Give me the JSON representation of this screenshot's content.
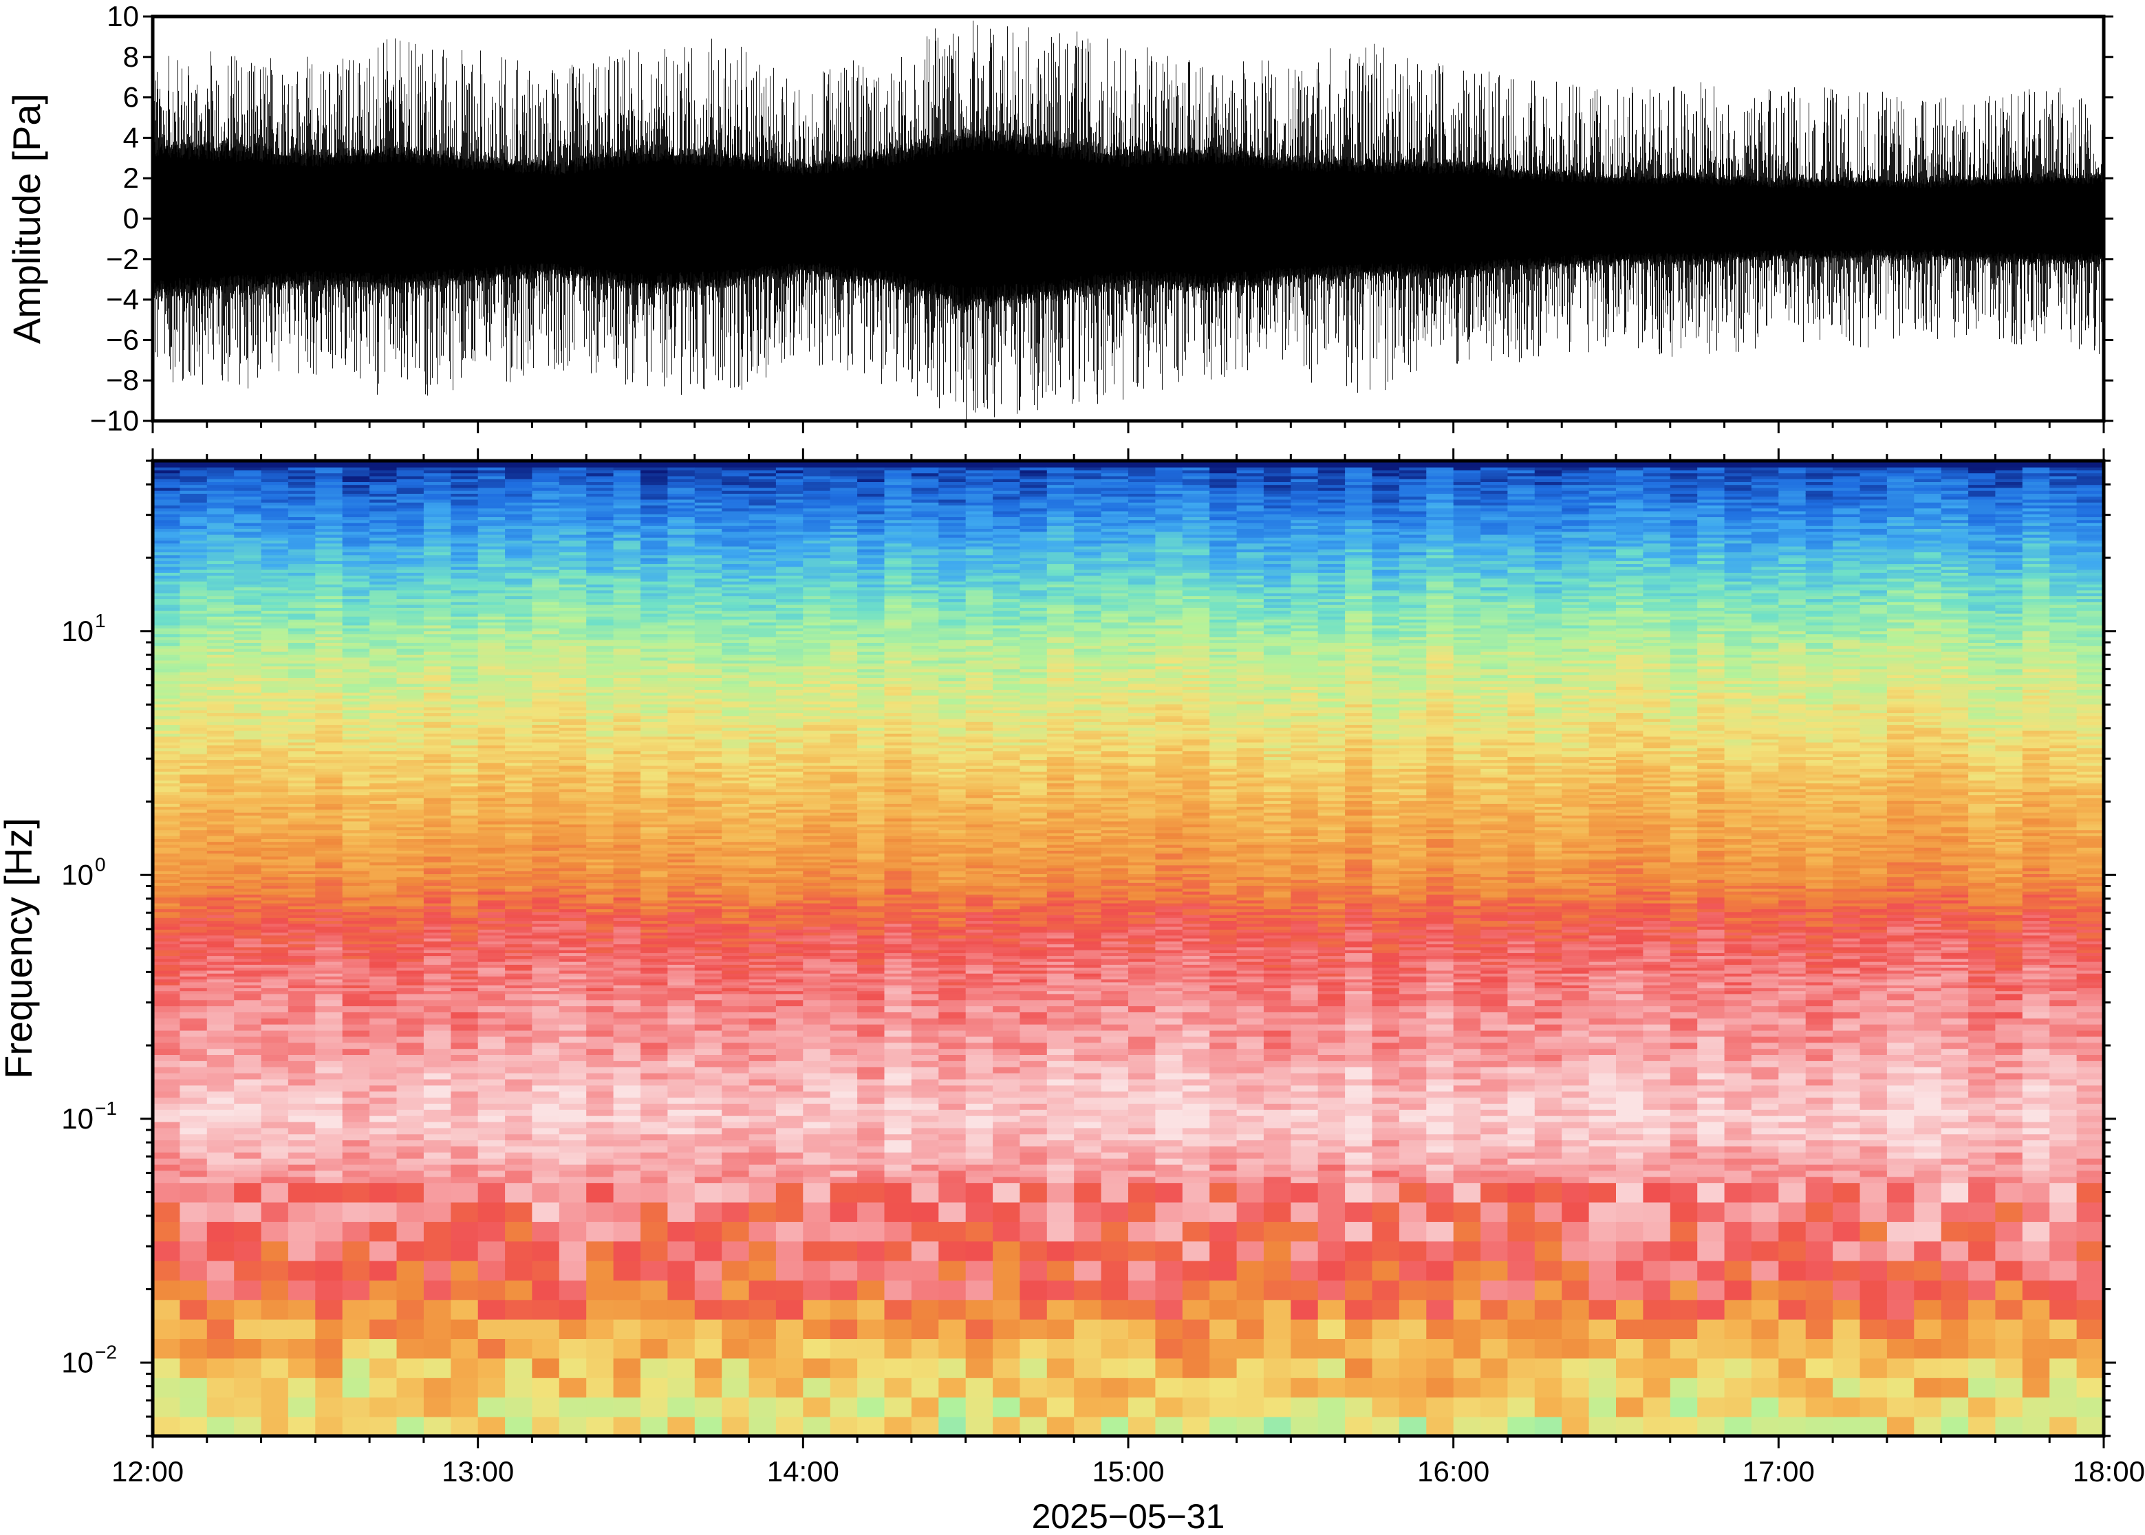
{
  "chart_data": [
    {
      "type": "line",
      "panel": "waveform",
      "ylabel": "Amplitude [Pa]",
      "ylim": [
        -10,
        10
      ],
      "yticks": [
        10,
        8,
        6,
        4,
        2,
        0,
        -2,
        -4,
        -6,
        -8,
        -10
      ],
      "ytick_labels": [
        "10",
        "8",
        "6",
        "4",
        "2",
        "0",
        "−2",
        "−4",
        "−6",
        "−8",
        "−10"
      ],
      "xlim": [
        "12:00",
        "18:00"
      ],
      "line_color": "#000000",
      "envelope": {
        "hours": [
          12.0,
          12.25,
          12.5,
          12.75,
          13.0,
          13.25,
          13.5,
          13.75,
          14.0,
          14.25,
          14.5,
          14.75,
          15.0,
          15.25,
          15.5,
          15.75,
          16.0,
          16.25,
          16.5,
          16.75,
          17.0,
          17.25,
          17.5,
          17.75,
          18.0
        ],
        "core_amplitude": [
          3.5,
          3.3,
          3.0,
          3.2,
          2.8,
          2.5,
          3.2,
          3.0,
          2.5,
          3.0,
          4.0,
          3.6,
          3.0,
          3.2,
          2.8,
          2.6,
          2.6,
          2.2,
          2.0,
          2.0,
          1.8,
          1.8,
          1.8,
          2.0,
          2.0
        ],
        "spike_amplitude": [
          8.0,
          8.5,
          8.0,
          9.0,
          8.5,
          7.5,
          8.5,
          9.0,
          7.0,
          8.5,
          10.0,
          9.5,
          9.0,
          8.0,
          8.0,
          9.0,
          7.5,
          7.0,
          6.5,
          7.0,
          6.5,
          6.5,
          6.0,
          6.5,
          7.0
        ]
      }
    },
    {
      "type": "heatmap",
      "panel": "spectrogram",
      "ylabel": "Frequency [Hz]",
      "yscale": "log",
      "ylim": [
        0.005,
        50
      ],
      "yticks": [
        {
          "base": "10",
          "exp": "1",
          "value": 10
        },
        {
          "base": "10",
          "exp": "0",
          "value": 1
        },
        {
          "base": "10",
          "exp": "−1",
          "value": 0.1
        },
        {
          "base": "10",
          "exp": "−2",
          "value": 0.01
        }
      ],
      "xlabel": "2025−05−31",
      "xticks": [
        "12:00",
        "13:00",
        "14:00",
        "15:00",
        "16:00",
        "17:00",
        "18:00"
      ],
      "colormap": "rainbow (blue = low power, white = high power)",
      "colormap_stops": [
        "#0a1a7a",
        "#1f6ee0",
        "#3fa9f0",
        "#6fe0c8",
        "#b5f29a",
        "#f2e27a",
        "#f5b451",
        "#f08a3c",
        "#f0504f",
        "#f7a1a4",
        "#fbe3e4"
      ],
      "power_profile": {
        "frequency_hz": [
          50,
          30,
          15,
          8,
          4,
          2,
          1,
          0.6,
          0.4,
          0.2,
          0.1,
          0.05,
          0.03,
          0.02,
          0.015,
          0.01,
          0.005
        ],
        "relative_level": [
          0.05,
          0.15,
          0.3,
          0.42,
          0.5,
          0.6,
          0.68,
          0.8,
          0.85,
          0.9,
          0.97,
          0.87,
          0.82,
          0.78,
          0.66,
          0.58,
          0.48
        ]
      }
    }
  ]
}
